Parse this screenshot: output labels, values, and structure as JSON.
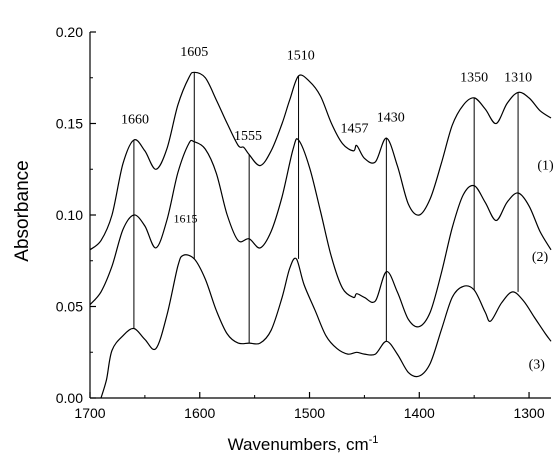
{
  "chart_data": {
    "type": "line",
    "title": "",
    "xlabel": "Wavenumbers, cm",
    "xlabel_superscript": "-1",
    "ylabel": "Absorbance",
    "xlim": [
      1700,
      1280
    ],
    "ylim": [
      0.0,
      0.2
    ],
    "x_reversed": true,
    "grid": false,
    "x_ticks": [
      1700,
      1600,
      1500,
      1400,
      1300
    ],
    "y_ticks": [
      0.0,
      0.05,
      0.1,
      0.15,
      0.2
    ],
    "x_tick_labels": [
      "1700",
      "1600",
      "1500",
      "1400",
      "1300"
    ],
    "y_tick_labels": [
      "0.00",
      "0.05",
      "0.10",
      "0.15",
      "0.20"
    ],
    "series": [
      {
        "label": "(1)",
        "label_at": [
          1285,
          0.125
        ],
        "points": [
          [
            1700,
            0.081
          ],
          [
            1690,
            0.086
          ],
          [
            1680,
            0.1
          ],
          [
            1670,
            0.128
          ],
          [
            1660,
            0.141
          ],
          [
            1650,
            0.135
          ],
          [
            1640,
            0.125
          ],
          [
            1630,
            0.136
          ],
          [
            1620,
            0.16
          ],
          [
            1610,
            0.175
          ],
          [
            1605,
            0.178
          ],
          [
            1595,
            0.175
          ],
          [
            1585,
            0.163
          ],
          [
            1575,
            0.15
          ],
          [
            1565,
            0.138
          ],
          [
            1560,
            0.137
          ],
          [
            1555,
            0.133
          ],
          [
            1545,
            0.127
          ],
          [
            1535,
            0.135
          ],
          [
            1525,
            0.15
          ],
          [
            1518,
            0.163
          ],
          [
            1510,
            0.176
          ],
          [
            1500,
            0.173
          ],
          [
            1490,
            0.165
          ],
          [
            1480,
            0.15
          ],
          [
            1470,
            0.139
          ],
          [
            1460,
            0.135
          ],
          [
            1457,
            0.138
          ],
          [
            1450,
            0.131
          ],
          [
            1440,
            0.129
          ],
          [
            1430,
            0.142
          ],
          [
            1420,
            0.127
          ],
          [
            1410,
            0.106
          ],
          [
            1400,
            0.1
          ],
          [
            1390,
            0.109
          ],
          [
            1380,
            0.128
          ],
          [
            1370,
            0.149
          ],
          [
            1360,
            0.16
          ],
          [
            1350,
            0.164
          ],
          [
            1340,
            0.158
          ],
          [
            1330,
            0.15
          ],
          [
            1320,
            0.161
          ],
          [
            1310,
            0.167
          ],
          [
            1300,
            0.164
          ],
          [
            1290,
            0.157
          ],
          [
            1280,
            0.153
          ]
        ]
      },
      {
        "label": "(2)",
        "label_at": [
          1290,
          0.075
        ],
        "points": [
          [
            1700,
            0.051
          ],
          [
            1690,
            0.058
          ],
          [
            1680,
            0.072
          ],
          [
            1670,
            0.092
          ],
          [
            1660,
            0.1
          ],
          [
            1650,
            0.094
          ],
          [
            1640,
            0.082
          ],
          [
            1630,
            0.097
          ],
          [
            1620,
            0.123
          ],
          [
            1610,
            0.139
          ],
          [
            1605,
            0.14
          ],
          [
            1595,
            0.136
          ],
          [
            1585,
            0.123
          ],
          [
            1575,
            0.1
          ],
          [
            1565,
            0.086
          ],
          [
            1555,
            0.087
          ],
          [
            1545,
            0.082
          ],
          [
            1535,
            0.091
          ],
          [
            1525,
            0.11
          ],
          [
            1515,
            0.136
          ],
          [
            1510,
            0.141
          ],
          [
            1500,
            0.126
          ],
          [
            1490,
            0.102
          ],
          [
            1480,
            0.077
          ],
          [
            1470,
            0.06
          ],
          [
            1460,
            0.055
          ],
          [
            1457,
            0.057
          ],
          [
            1450,
            0.055
          ],
          [
            1440,
            0.053
          ],
          [
            1430,
            0.069
          ],
          [
            1420,
            0.058
          ],
          [
            1410,
            0.043
          ],
          [
            1400,
            0.039
          ],
          [
            1390,
            0.047
          ],
          [
            1380,
            0.068
          ],
          [
            1370,
            0.093
          ],
          [
            1360,
            0.111
          ],
          [
            1350,
            0.116
          ],
          [
            1340,
            0.107
          ],
          [
            1330,
            0.097
          ],
          [
            1320,
            0.107
          ],
          [
            1310,
            0.112
          ],
          [
            1300,
            0.105
          ],
          [
            1290,
            0.091
          ],
          [
            1280,
            0.081
          ]
        ]
      },
      {
        "label": "(3)",
        "label_at": [
          1293,
          0.016
        ],
        "points": [
          [
            1690,
            0.0
          ],
          [
            1685,
            0.01
          ],
          [
            1680,
            0.026
          ],
          [
            1670,
            0.034
          ],
          [
            1660,
            0.038
          ],
          [
            1650,
            0.032
          ],
          [
            1640,
            0.027
          ],
          [
            1630,
            0.045
          ],
          [
            1620,
            0.072
          ],
          [
            1615,
            0.078
          ],
          [
            1605,
            0.076
          ],
          [
            1595,
            0.065
          ],
          [
            1585,
            0.048
          ],
          [
            1575,
            0.035
          ],
          [
            1565,
            0.03
          ],
          [
            1555,
            0.03
          ],
          [
            1545,
            0.03
          ],
          [
            1535,
            0.037
          ],
          [
            1525,
            0.055
          ],
          [
            1518,
            0.071
          ],
          [
            1512,
            0.076
          ],
          [
            1505,
            0.062
          ],
          [
            1495,
            0.048
          ],
          [
            1485,
            0.034
          ],
          [
            1475,
            0.027
          ],
          [
            1465,
            0.024
          ],
          [
            1457,
            0.025
          ],
          [
            1450,
            0.024
          ],
          [
            1440,
            0.024
          ],
          [
            1430,
            0.031
          ],
          [
            1420,
            0.024
          ],
          [
            1410,
            0.014
          ],
          [
            1400,
            0.012
          ],
          [
            1390,
            0.019
          ],
          [
            1380,
            0.037
          ],
          [
            1370,
            0.055
          ],
          [
            1360,
            0.061
          ],
          [
            1350,
            0.059
          ],
          [
            1340,
            0.047
          ],
          [
            1335,
            0.042
          ],
          [
            1325,
            0.052
          ],
          [
            1315,
            0.058
          ],
          [
            1305,
            0.053
          ],
          [
            1295,
            0.044
          ],
          [
            1285,
            0.035
          ],
          [
            1280,
            0.031
          ]
        ]
      }
    ],
    "annotations": [
      {
        "text": "1660",
        "x": 1660,
        "line_y_top": 0.141,
        "line_y_bottom": 0.038
      },
      {
        "text": "1605",
        "x": 1605,
        "line_y_top": 0.178,
        "line_y_bottom": 0.076
      },
      {
        "text": "1615",
        "x": 1615,
        "line_y_top": null,
        "line_y_bottom": null
      },
      {
        "text": "1555",
        "x": 1555,
        "line_y_top": 0.133,
        "line_y_bottom": 0.03
      },
      {
        "text": "1510",
        "x": 1510,
        "line_y_top": 0.176,
        "line_y_bottom": 0.076
      },
      {
        "text": "1457",
        "x": 1457,
        "line_y_top": null,
        "line_y_bottom": null
      },
      {
        "text": "1430",
        "x": 1430,
        "line_y_top": 0.142,
        "line_y_bottom": 0.031
      },
      {
        "text": "1350",
        "x": 1350,
        "line_y_top": 0.164,
        "line_y_bottom": 0.059
      },
      {
        "text": "1310",
        "x": 1310,
        "line_y_top": 0.167,
        "line_y_bottom": 0.058
      }
    ]
  }
}
